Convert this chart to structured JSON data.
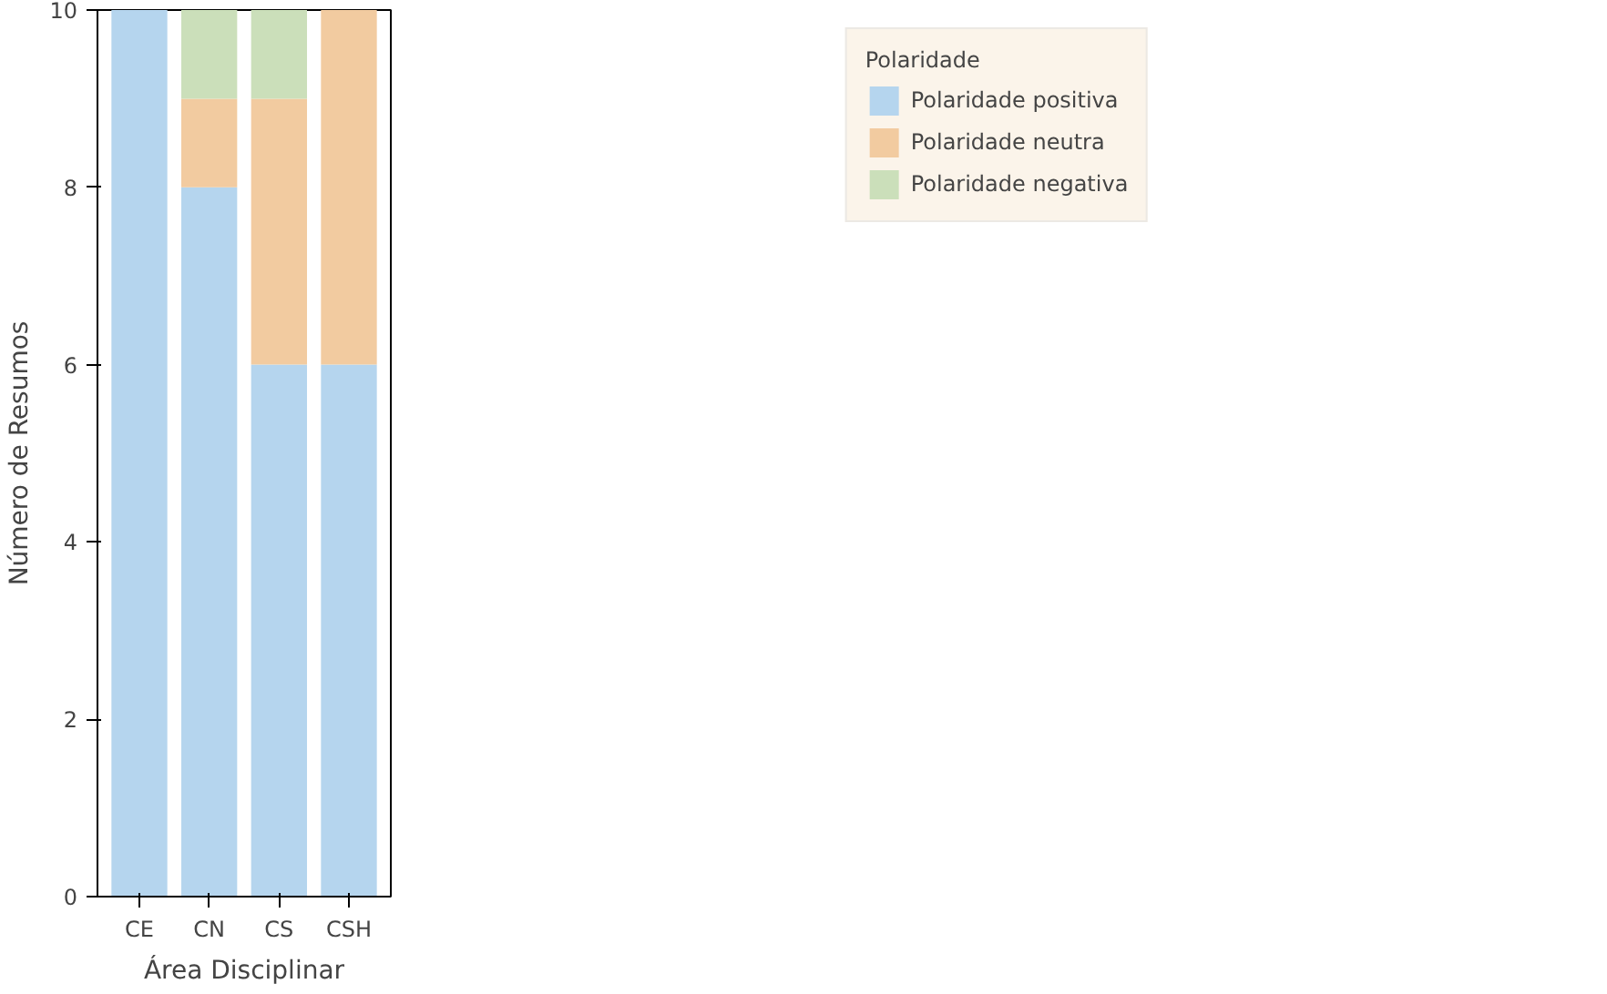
{
  "chart_data": {
    "type": "bar",
    "stacked": true,
    "xlabel": "Área Disciplinar",
    "ylabel": "Número de Resumos",
    "legend_title": "Polaridade",
    "legend": "top right",
    "categories": [
      "CE",
      "CN",
      "CS",
      "CSH"
    ],
    "series": [
      {
        "name": "Polaridade positiva",
        "color": "#b5d5ee",
        "values": [
          10,
          8,
          6,
          6
        ]
      },
      {
        "name": "Polaridade neutra",
        "color": "#f2cba0",
        "values": [
          0,
          1,
          3,
          4
        ]
      },
      {
        "name": "Polaridade negativa",
        "color": "#cbdfba",
        "values": [
          0,
          1,
          1,
          0
        ]
      }
    ],
    "ylim": [
      0,
      10
    ],
    "yticks": [
      0,
      2,
      4,
      6,
      8,
      10
    ]
  }
}
